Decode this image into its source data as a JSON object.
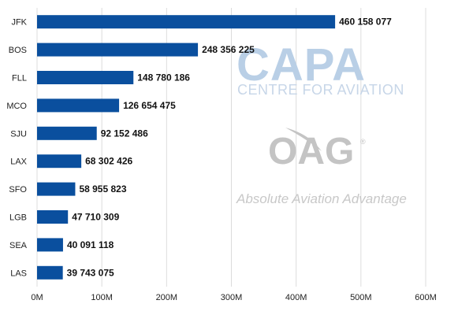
{
  "chart_data": {
    "type": "bar",
    "orientation": "horizontal",
    "categories": [
      "JFK",
      "BOS",
      "FLL",
      "MCO",
      "SJU",
      "LAX",
      "SFO",
      "LGB",
      "SEA",
      "LAS"
    ],
    "values": [
      460158077,
      248356225,
      148780186,
      126654475,
      92152486,
      68302426,
      58955823,
      47710309,
      40091118,
      39743075
    ],
    "data_labels": [
      "460 158 077",
      "248 356 225",
      "148 780 186",
      "126 654 475",
      "92 152 486",
      "68 302 426",
      "58 955 823",
      "47 710 309",
      "40 091 118",
      "39 743 075"
    ],
    "xlim": [
      0,
      600000000
    ],
    "x_ticks": [
      0,
      100000000,
      200000000,
      300000000,
      400000000,
      500000000,
      600000000
    ],
    "x_tick_labels": [
      "0M",
      "100M",
      "200M",
      "300M",
      "400M",
      "500M",
      "600M"
    ],
    "grid": "vertical",
    "bar_color": "#0a4f9e"
  },
  "watermarks": {
    "capa": "CAPA",
    "capa_sub": "CENTRE FOR AVIATION",
    "oag": "OAG",
    "oag_reg": "®",
    "oag_tagline": "Absolute Aviation Advantage"
  }
}
